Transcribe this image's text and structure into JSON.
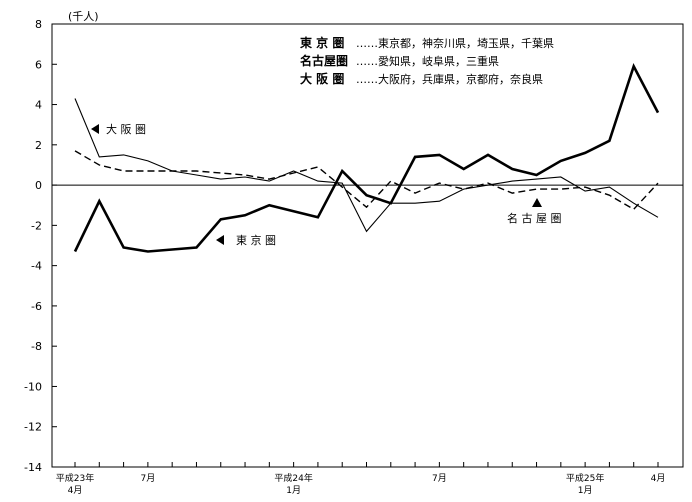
{
  "chart_data": {
    "type": "line",
    "unit_label": "(千人)",
    "ylim": [
      -14,
      8
    ],
    "y_ticks": [
      "8",
      "6",
      "4",
      "2",
      "0",
      "-2",
      "-4",
      "-6",
      "-8",
      "-10",
      "-12",
      "-14"
    ],
    "y_tick_values": [
      8,
      6,
      4,
      2,
      0,
      -2,
      -4,
      -6,
      -8,
      -10,
      -12,
      -14
    ],
    "months": [
      "平成23年4月",
      "5月",
      "6月",
      "7月",
      "8月",
      "9月",
      "10月",
      "11月",
      "12月",
      "平成24年1月",
      "2月",
      "3月",
      "4月",
      "5月",
      "6月",
      "7月",
      "8月",
      "9月",
      "10月",
      "11月",
      "12月",
      "平成25年1月",
      "2月",
      "3月",
      "4月"
    ],
    "x_ticks": [
      {
        "index": 0,
        "line1": "平成23年",
        "line2": "4月"
      },
      {
        "index": 3,
        "line1": "7月",
        "line2": ""
      },
      {
        "index": 9,
        "line1": "平成24年",
        "line2": "1月"
      },
      {
        "index": 15,
        "line1": "7月",
        "line2": ""
      },
      {
        "index": 21,
        "line1": "平成25年",
        "line2": "1月"
      },
      {
        "index": 24,
        "line1": "4月",
        "line2": ""
      }
    ],
    "series": [
      {
        "name": "東京圏",
        "style": "thick",
        "values": [
          -3.3,
          -0.8,
          -3.1,
          -3.3,
          -3.2,
          -3.1,
          -1.7,
          -1.5,
          -1.0,
          -1.3,
          -1.6,
          0.7,
          -0.5,
          -0.9,
          1.4,
          1.5,
          0.8,
          1.5,
          0.8,
          0.5,
          1.2,
          1.6,
          2.2,
          5.9,
          3.6
        ]
      },
      {
        "name": "名古屋圏",
        "style": "dashed",
        "values": [
          1.7,
          1.0,
          0.7,
          0.7,
          0.7,
          0.7,
          0.6,
          0.5,
          0.3,
          0.6,
          0.9,
          -0.1,
          -1.1,
          0.2,
          -0.4,
          0.1,
          -0.2,
          0.1,
          -0.4,
          -0.2,
          -0.2,
          -0.1,
          -0.5,
          -1.2,
          0.1
        ]
      },
      {
        "name": "大阪圏",
        "style": "thin",
        "values": [
          4.3,
          1.4,
          1.5,
          1.2,
          0.7,
          0.5,
          0.3,
          0.4,
          0.2,
          0.7,
          0.2,
          0.1,
          -2.3,
          -0.9,
          -0.9,
          -0.8,
          -0.2,
          0.0,
          0.2,
          0.3,
          0.4,
          -0.3,
          -0.1,
          -0.9,
          -1.6
        ]
      }
    ],
    "legend": [
      {
        "name": "東 京 圏",
        "desc": "……東京都，神奈川県，埼玉県，千葉県"
      },
      {
        "name": "名古屋圏",
        "desc": "……愛知県，岐阜県，三重県"
      },
      {
        "name": "大 阪 圏",
        "desc": "……大阪府，兵庫県，京都府，奈良県"
      }
    ],
    "annotations": [
      {
        "series": "大阪圏",
        "text": "大 阪 圏",
        "arrow": "left"
      },
      {
        "series": "東京圏",
        "text": "東 京 圏",
        "arrow": "left"
      },
      {
        "series": "名古屋圏",
        "text": "名 古 屋 圏",
        "arrow": "up"
      }
    ],
    "zero_line": true,
    "grid": false,
    "legend_position": "top-right"
  }
}
